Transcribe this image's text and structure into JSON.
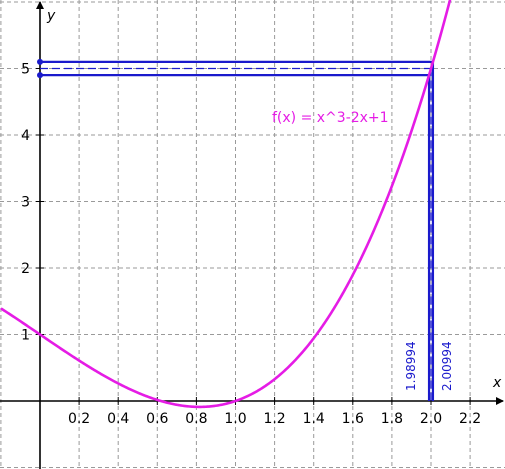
{
  "chart_data": {
    "type": "line",
    "xlabel": "x",
    "ylabel": "y",
    "xlim": [
      -0.2,
      2.4
    ],
    "ylim": [
      -1,
      6
    ],
    "grid": true,
    "x_tick_labels": [
      "0.2",
      "0.4",
      "0.6",
      "0.8",
      "1.0",
      "1.2",
      "1.4",
      "1.6",
      "1.8",
      "2.0",
      "2.2"
    ],
    "y_tick_labels": [
      "1",
      "2",
      "3",
      "4",
      "5"
    ],
    "series": [
      {
        "name": "f(x) = x^3-2x+1",
        "function": "x^3-2x+1",
        "x_range": [
          -0.2,
          2.1
        ],
        "color": "#e51ce5"
      }
    ],
    "guides": {
      "x_lower": 1.98994,
      "x_upper": 2.00994,
      "x_lower_label": "1.98994",
      "x_upper_label": "2.00994",
      "y_lower": 4.9,
      "y_upper": 5.1,
      "y_center": 5.0,
      "x_center": 2.0,
      "color": "#1a1acc"
    }
  }
}
